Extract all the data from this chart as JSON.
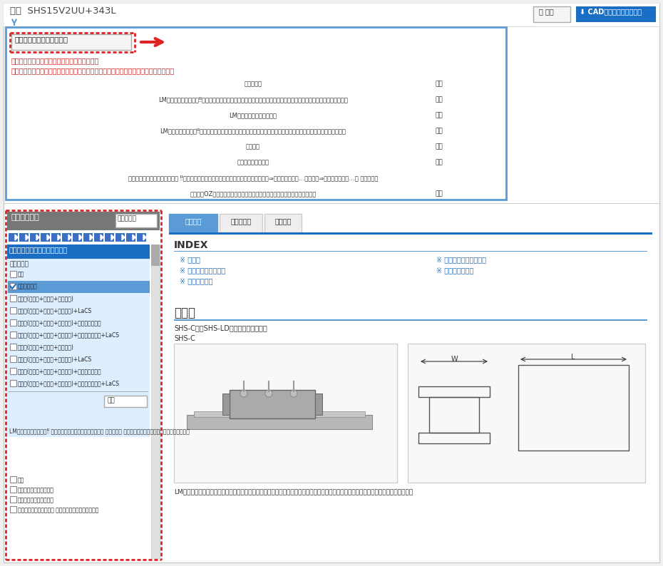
{
  "title_model": "型番  SHS15V2UU+343L",
  "btn_save": "保存",
  "btn_cad": "CADデータダウンロード",
  "btn_option": "追加工・オプションを見る",
  "red_text1": "以下の仕様が初期値として設定されています。",
  "red_text2": "（変更する場合は「追加工・オプションを見る」を押して、設定し直してください。）",
  "table_rows": [
    [
      "防塵用記号",
      "なし"
    ],
    [
      "LMブロック表面処理（‼レールとブロックで異なる表面処理や、レールのみ・ブロックのみの表面処理は製作不可）",
      "なし"
    ],
    [
      "LMレールタップタイプ記号",
      "なし"
    ],
    [
      "LMレール表面処理（‼レールとブロックで異なる表面処理や、レールのみ・ブロックのみの表面処理は製作不可）",
      "なし"
    ],
    [
      "キャップ",
      "なし"
    ],
    [
      "スチールテープ付き",
      "なし"
    ],
    [
      "同一平面に使用される軸数記号 ‼必要軸数の個数でご注文数を入力ください。（軸数２⇒注文数：２、４…、軸数３⇒注文数：３、６…） 必要軸数１",
      ""
    ],
    [
      "防振装置OZ（ありを選択するには、何れかの防塵用記号の指定が必要です）",
      "なし"
    ]
  ],
  "filter_title": "絞り込み条件",
  "filter_btn": "すべて解除",
  "blue_bars_count": 13,
  "option_section_title": "追加工・オプションを選択する",
  "dustseal_title": "防塵用記号",
  "dustseal_items": [
    {
      "label": "なし",
      "checked": false,
      "highlighted": false
    },
    {
      "label": "エンドシール",
      "checked": true,
      "highlighted": true
    },
    {
      "label": "シール(エンド+サイド+インナー)",
      "checked": false,
      "highlighted": false
    },
    {
      "label": "シール(エンド+サイド+インナー)+LaCS",
      "checked": false,
      "highlighted": false
    },
    {
      "label": "シール(エンド+サイド+インナー)+金属スクレーパ",
      "checked": false,
      "highlighted": false
    },
    {
      "label": "シール(エンド+サイド+インナー)+金属スクレーパ+LaCS",
      "checked": false,
      "highlighted": false
    },
    {
      "label": "シール(ダブル+サイド+インナー)",
      "checked": false,
      "highlighted": false
    },
    {
      "label": "シール(ダブル+サイド+インナー)+LaCS",
      "checked": false,
      "highlighted": false
    },
    {
      "label": "シール(ダブル+サイド+インナー)+金属スクレーパ",
      "checked": false,
      "highlighted": false
    },
    {
      "label": "シール(ダブル+サイド+インナー)+金属スクレーパ+LaCS",
      "checked": false,
      "highlighted": false
    }
  ],
  "filter_btn2": "解除",
  "lm_section_title": "LMブロック表面処理（‼ レールとブロックで異なる表面処理 や、レール のみ・ブロックのみの表面処理は製作不可）",
  "lm_items": [
    {
      "label": "なし",
      "checked": false
    },
    {
      "label": "工業用硬質クロムめっき",
      "checked": false
    },
    {
      "label": "工業用黒クロム皮膜処理",
      "checked": false
    },
    {
      "label": "工業用黒クロム皮膜処理 特殊フッ素樹脂コーティング",
      "checked": false
    }
  ],
  "tab_active": "商品情報",
  "tab2": "型番リスト",
  "tab3": "カタログ",
  "index_title": "INDEX",
  "index_links_left": [
    "外形図",
    "使用方法・使用事例",
    "製品比較情報"
  ],
  "index_links_right": [
    "製品の基本仕様・特長",
    "注意・禁止事項"
  ],
  "section_title": "外形図",
  "shs_subtitle": "SHS-C形、SHS-LD形の外形図・規格表",
  "shs_label": "SHS-C",
  "caption": "LMブロックのフランジ部にタップ加工。上下どちらからでも取付けが可能。テーブルに取付ボルト用の貫通稴があれれない場合に使用。"
}
